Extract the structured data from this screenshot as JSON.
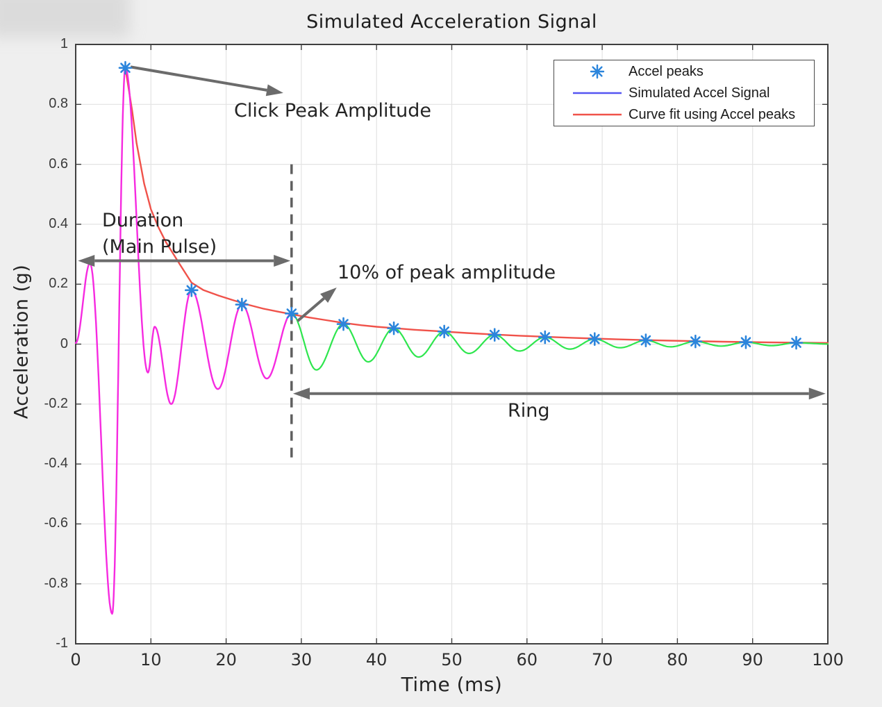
{
  "figure": {
    "title": "Simulated Acceleration Signal",
    "xlabel": "Time (ms)",
    "ylabel": "Acceleration (g)"
  },
  "legend": {
    "items": [
      {
        "label": "Accel peaks",
        "type": "asterisk",
        "color": "#2b85dc"
      },
      {
        "label": "Simulated Accel Signal",
        "type": "line",
        "color": "#5454f2"
      },
      {
        "label": "Curve fit using Accel peaks",
        "type": "line",
        "color": "#f0524a"
      }
    ]
  },
  "annotations": {
    "click_peak": {
      "text": "Click Peak Amplitude"
    },
    "duration": {
      "line1": "Duration",
      "line2": "(Main Pulse)"
    },
    "ten_percent": {
      "text": "10% of peak amplitude"
    },
    "ring": {
      "text": "Ring"
    }
  },
  "chart_data": {
    "type": "line",
    "title": "Simulated Acceleration Signal",
    "xlabel": "Time (ms)",
    "ylabel": "Acceleration (g)",
    "xlim": [
      0,
      100
    ],
    "ylim": [
      -1,
      1
    ],
    "grid": true,
    "legend_position": "top-right",
    "x_ticks": {
      "values": [
        0,
        10,
        20,
        30,
        40,
        50,
        60,
        70,
        80,
        90,
        100
      ],
      "labels": [
        "0",
        "10",
        "20",
        "30",
        "40",
        "50",
        "60",
        "70",
        "80",
        "90",
        "100"
      ]
    },
    "y_ticks": {
      "values": [
        1,
        0.8,
        0.6,
        0.4,
        0.2,
        0,
        -0.2,
        -0.4,
        -0.6,
        -0.8,
        -1
      ],
      "labels": [
        "1",
        "0.8",
        "0.6",
        "0.4",
        "0.2",
        "0",
        "-0.2",
        "-0.4",
        "-0.6",
        "-0.8",
        "-1"
      ]
    },
    "colors": {
      "main_pulse": "#f62ae0",
      "ring": "#2ee64e",
      "fit": "#f0524a",
      "marker": "#2b85dc",
      "arrow": "#6b6b6b",
      "dashed": "#5f5f5f",
      "grid": "#e3e3e3",
      "axis": "#3f3f3f"
    },
    "series": [
      {
        "name": "Accel peaks",
        "type": "scatter",
        "marker": "asterisk",
        "x": [
          6.6,
          15.4,
          22.1,
          28.7,
          35.6,
          42.3,
          49.0,
          55.7,
          62.4,
          69.0,
          75.8,
          82.4,
          89.1,
          95.8
        ],
        "y": [
          0.922,
          0.18,
          0.132,
          0.102,
          0.067,
          0.053,
          0.042,
          0.031,
          0.023,
          0.017,
          0.0125,
          0.009,
          0.0065,
          0.0045
        ]
      },
      {
        "name": "Simulated Accel Signal (main pulse segment)",
        "type": "line",
        "color_key": "main_pulse",
        "interpolation": "half-cosine-through-extrema",
        "extrema": [
          [
            0,
            0.004
          ],
          [
            1.9,
            0.27
          ],
          [
            4.85,
            -0.9
          ],
          [
            6.6,
            0.922
          ],
          [
            9.6,
            -0.095
          ],
          [
            10.5,
            0.058
          ],
          [
            12.7,
            -0.2
          ],
          [
            15.4,
            0.18
          ],
          [
            18.9,
            -0.15
          ],
          [
            22.1,
            0.132
          ],
          [
            25.4,
            -0.115
          ],
          [
            28.7,
            0.102
          ]
        ]
      },
      {
        "name": "Simulated Accel Signal (ring segment)",
        "type": "line",
        "color_key": "ring",
        "interpolation": "half-cosine-through-extrema",
        "extrema": [
          [
            28.7,
            0.102
          ],
          [
            32.0,
            -0.086
          ],
          [
            35.6,
            0.067
          ],
          [
            38.9,
            -0.059
          ],
          [
            42.3,
            0.053
          ],
          [
            45.6,
            -0.043
          ],
          [
            49.0,
            0.042
          ],
          [
            52.3,
            -0.031
          ],
          [
            55.7,
            0.031
          ],
          [
            59.0,
            -0.023
          ],
          [
            62.4,
            0.023
          ],
          [
            65.7,
            -0.0165
          ],
          [
            69.0,
            0.017
          ],
          [
            72.4,
            -0.012
          ],
          [
            75.8,
            0.0125
          ],
          [
            79.1,
            -0.009
          ],
          [
            82.4,
            0.009
          ],
          [
            85.8,
            -0.0065
          ],
          [
            89.1,
            0.0065
          ],
          [
            92.5,
            -0.005
          ],
          [
            95.8,
            0.0045
          ],
          [
            100,
            0.0005
          ]
        ]
      },
      {
        "name": "Curve fit using Accel peaks",
        "type": "line",
        "color_key": "fit",
        "points": [
          [
            6.6,
            0.922
          ],
          [
            7.5,
            0.78
          ],
          [
            8.1,
            0.67
          ],
          [
            9.1,
            0.535
          ],
          [
            10,
            0.45
          ],
          [
            11,
            0.39
          ],
          [
            12,
            0.34
          ],
          [
            13,
            0.3
          ],
          [
            14,
            0.26
          ],
          [
            15.4,
            0.205
          ],
          [
            17,
            0.18
          ],
          [
            19,
            0.162
          ],
          [
            21,
            0.146
          ],
          [
            23,
            0.131
          ],
          [
            25,
            0.118
          ],
          [
            27,
            0.108
          ],
          [
            28.7,
            0.1
          ],
          [
            31,
            0.089
          ],
          [
            33,
            0.081
          ],
          [
            35.6,
            0.071
          ],
          [
            38,
            0.063
          ],
          [
            40,
            0.058
          ],
          [
            42.3,
            0.0535
          ],
          [
            45,
            0.048
          ],
          [
            49,
            0.042
          ],
          [
            52,
            0.037
          ],
          [
            55.7,
            0.032
          ],
          [
            59,
            0.028
          ],
          [
            62.4,
            0.0245
          ],
          [
            66,
            0.021
          ],
          [
            69,
            0.0185
          ],
          [
            72,
            0.016
          ],
          [
            75.8,
            0.0135
          ],
          [
            79,
            0.0115
          ],
          [
            82.4,
            0.01
          ],
          [
            86,
            0.008
          ],
          [
            89.1,
            0.007
          ],
          [
            92,
            0.006
          ],
          [
            95.8,
            0.005
          ],
          [
            100,
            0.004
          ]
        ]
      }
    ],
    "threshold_line": {
      "t": 28.7,
      "g_from": 0.6,
      "g_to": -0.4,
      "style": "dashed"
    },
    "arrows": [
      {
        "id": "click-peak-arrow",
        "from": [
          7.3,
          0.925
        ],
        "to": [
          27.6,
          0.838
        ],
        "heads": "end"
      },
      {
        "id": "duration-arrow",
        "from": [
          0.3,
          0.278
        ],
        "to": [
          28.55,
          0.278
        ],
        "heads": "both"
      },
      {
        "id": "ten-percent-arrow",
        "from": [
          29.5,
          0.077
        ],
        "to": [
          34.7,
          0.189
        ],
        "heads": "end"
      },
      {
        "id": "ring-arrow",
        "from": [
          28.9,
          -0.165
        ],
        "to": [
          99.7,
          -0.165
        ],
        "heads": "both"
      }
    ]
  }
}
